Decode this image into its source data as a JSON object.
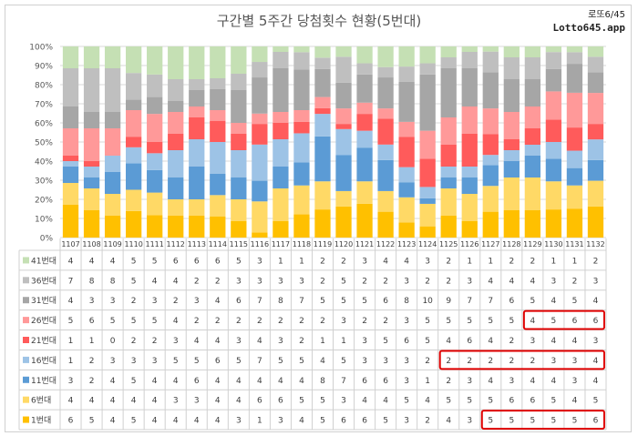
{
  "brand": {
    "line1": "로또6/45",
    "line2": "Lotto645.app"
  },
  "chart_data": {
    "type": "bar",
    "stacked": true,
    "normalized": true,
    "title": "구간별 5주간 당첨횟수 현황(5번대)",
    "ylim": [
      0,
      100
    ],
    "y_ticks": [
      "0%",
      "10%",
      "20%",
      "30%",
      "40%",
      "50%",
      "60%",
      "70%",
      "80%",
      "90%",
      "100%"
    ],
    "grid": true,
    "categories": [
      "1107",
      "1108",
      "1109",
      "1110",
      "1111",
      "1112",
      "1113",
      "1114",
      "1115",
      "1116",
      "1117",
      "1118",
      "1119",
      "1120",
      "1121",
      "1122",
      "1123",
      "1124",
      "1125",
      "1126",
      "1127",
      "1128",
      "1129",
      "1130",
      "1131",
      "1132"
    ],
    "series": [
      {
        "name": "1번대",
        "color": "#ffc000",
        "values": [
          6,
          5,
          4,
          5,
          4,
          4,
          4,
          4,
          3,
          1,
          3,
          4,
          5,
          6,
          6,
          5,
          3,
          2,
          4,
          3,
          5,
          5,
          5,
          5,
          5,
          6
        ]
      },
      {
        "name": "6번대",
        "color": "#ffd966",
        "values": [
          4,
          4,
          4,
          4,
          4,
          3,
          3,
          4,
          4,
          6,
          6,
          5,
          5,
          3,
          4,
          4,
          5,
          4,
          5,
          5,
          5,
          6,
          6,
          5,
          4,
          5
        ]
      },
      {
        "name": "11번대",
        "color": "#5b9bd5",
        "values": [
          3,
          2,
          4,
          5,
          4,
          4,
          6,
          4,
          4,
          4,
          4,
          4,
          8,
          7,
          6,
          6,
          3,
          1,
          2,
          3,
          4,
          3,
          4,
          4,
          3,
          4
        ]
      },
      {
        "name": "16번대",
        "color": "#9dc3e6",
        "values": [
          1,
          2,
          3,
          3,
          3,
          5,
          5,
          6,
          5,
          7,
          5,
          5,
          4,
          5,
          3,
          3,
          3,
          2,
          2,
          2,
          2,
          2,
          2,
          3,
          3,
          4
        ]
      },
      {
        "name": "21번대",
        "color": "#ff5b5b",
        "values": [
          1,
          1,
          0,
          2,
          2,
          3,
          4,
          4,
          3,
          4,
          3,
          2,
          1,
          1,
          3,
          5,
          6,
          5,
          4,
          6,
          4,
          2,
          3,
          4,
          4,
          3
        ]
      },
      {
        "name": "26번대",
        "color": "#ff9999",
        "values": [
          5,
          6,
          5,
          5,
          5,
          4,
          2,
          2,
          2,
          2,
          2,
          2,
          2,
          3,
          2,
          2,
          3,
          5,
          5,
          5,
          5,
          5,
          4,
          5,
          6,
          6
        ]
      },
      {
        "name": "31번대",
        "color": "#a6a6a6",
        "values": [
          4,
          3,
          3,
          2,
          3,
          2,
          3,
          4,
          6,
          7,
          8,
          7,
          5,
          5,
          5,
          6,
          8,
          10,
          9,
          7,
          7,
          6,
          5,
          4,
          5,
          4
        ]
      },
      {
        "name": "36번대",
        "color": "#bfbfbf",
        "values": [
          7,
          8,
          8,
          5,
          4,
          4,
          2,
          2,
          3,
          3,
          3,
          3,
          2,
          5,
          2,
          2,
          3,
          2,
          2,
          3,
          4,
          4,
          4,
          3,
          2,
          3
        ]
      },
      {
        "name": "41번대",
        "color": "#c5e0b4",
        "values": [
          4,
          4,
          4,
          5,
          5,
          6,
          6,
          6,
          5,
          3,
          1,
          1,
          2,
          2,
          3,
          4,
          4,
          3,
          2,
          1,
          1,
          2,
          2,
          1,
          1,
          2
        ]
      }
    ],
    "table_row_order": [
      "41번대",
      "36번대",
      "31번대",
      "26번대",
      "21번대",
      "16번대",
      "11번대",
      "6번대",
      "1번대"
    ],
    "highlights": [
      {
        "series": "26번대",
        "from": "1129",
        "to": "1132",
        "color": "#e00000"
      },
      {
        "series": "16번대",
        "from": "1125",
        "to": "1132",
        "color": "#e00000"
      },
      {
        "series": "1번대",
        "from": "1127",
        "to": "1132",
        "color": "#e00000"
      }
    ]
  }
}
